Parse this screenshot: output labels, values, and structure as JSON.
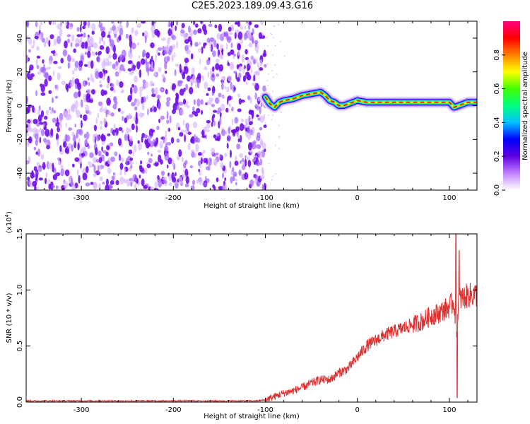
{
  "title": "C2E5.2023.189.09.43.G16",
  "chart_data": [
    {
      "type": "heatmap",
      "name": "spectrogram",
      "xlabel": "Height of straight line (km)",
      "ylabel": "Frequency (Hz)",
      "xlim": [
        -360,
        130
      ],
      "ylim": [
        -50,
        50
      ],
      "xticks": [
        -300,
        -200,
        -100,
        0,
        100
      ],
      "yticks": [
        -40,
        -20,
        0,
        20,
        40
      ],
      "xtick_labels": [
        "-300",
        "-200",
        "-100",
        "0",
        "100"
      ],
      "ytick_labels": [
        "-40",
        "-20",
        "0",
        "20",
        "40"
      ],
      "noise_region_x": [
        -360,
        -100
      ],
      "signal_trace": {
        "x": [
          -100,
          -95,
          -90,
          -85,
          -80,
          -70,
          -60,
          -50,
          -40,
          -35,
          -30,
          -25,
          -20,
          -15,
          -10,
          -5,
          0,
          10,
          20,
          30,
          40,
          50,
          60,
          70,
          80,
          90,
          100,
          105,
          110,
          120,
          130
        ],
        "freq": [
          5,
          1,
          -1,
          2,
          3,
          4,
          6,
          7,
          8,
          6,
          3,
          2,
          0,
          0,
          1,
          2,
          3,
          2,
          2,
          2,
          2,
          2,
          2,
          2,
          2,
          2,
          2,
          -1,
          0,
          2,
          2
        ]
      },
      "colorbar": {
        "label": "Normalized spectral amplitude",
        "range": [
          0,
          1
        ],
        "ticks": [
          0.0,
          0.2,
          0.4,
          0.6,
          0.8
        ],
        "tick_labels": [
          "0.0",
          "0.2",
          "0.4",
          "0.6",
          "0.8"
        ],
        "colormap": [
          "#ffffff",
          "#c080ff",
          "#6000e0",
          "#0000ff",
          "#00c0ff",
          "#00ff80",
          "#40ff00",
          "#ffff00",
          "#ff8000",
          "#ff0000",
          "#ff0080"
        ]
      }
    },
    {
      "type": "line",
      "name": "snr",
      "xlabel": "Height of straight line (km)",
      "ylabel": "SNR (10 * v/v)",
      "scale_note": "(x10",
      "scale_exp": "4",
      "scale_close": ")",
      "xlim": [
        -360,
        130
      ],
      "ylim": [
        0,
        1.5
      ],
      "xticks": [
        -300,
        -200,
        -100,
        0,
        100
      ],
      "yticks": [
        0.0,
        0.5,
        1.0,
        1.5
      ],
      "xtick_labels": [
        "-300",
        "-200",
        "-100",
        "0",
        "100"
      ],
      "ytick_labels": [
        "0.0",
        "0.5",
        "1.0",
        "1.5"
      ],
      "line_color": "#e03030",
      "series": [
        {
          "x": [
            -360,
            -300,
            -200,
            -150,
            -110,
            -100,
            -90,
            -80,
            -70,
            -60,
            -50,
            -40,
            -30,
            -20,
            -10,
            0,
            10,
            20,
            30,
            40,
            50,
            60,
            70,
            80,
            90,
            100,
            105,
            108,
            110,
            115,
            120,
            130
          ],
          "values": [
            0.01,
            0.01,
            0.01,
            0.01,
            0.01,
            0.02,
            0.05,
            0.08,
            0.1,
            0.13,
            0.17,
            0.2,
            0.2,
            0.26,
            0.3,
            0.4,
            0.5,
            0.55,
            0.6,
            0.63,
            0.66,
            0.69,
            0.72,
            0.77,
            0.8,
            0.85,
            0.9,
            0.6,
            0.92,
            0.93,
            0.95,
            0.96
          ]
        }
      ],
      "spikes": [
        {
          "x": 107,
          "value": 1.5
        },
        {
          "x": 108.5,
          "value": 0.04
        },
        {
          "x": 110.5,
          "value": 1.35
        }
      ]
    }
  ]
}
